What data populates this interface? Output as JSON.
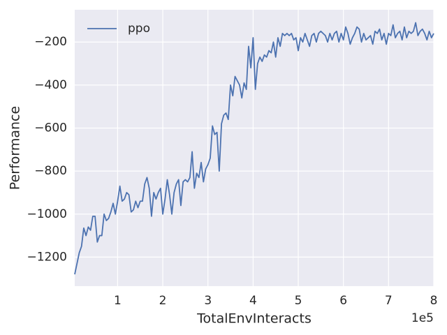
{
  "chart_data": {
    "type": "line",
    "xlabel": "TotalEnvInteracts",
    "ylabel": "Performance",
    "x_offset_label": "1e5",
    "legend": "upper left",
    "grid": true,
    "xlim": [
      5000,
      800000
    ],
    "ylim": [
      -1335,
      -50
    ],
    "xticks": [
      {
        "value": 100000,
        "label": "1"
      },
      {
        "value": 200000,
        "label": "2"
      },
      {
        "value": 300000,
        "label": "3"
      },
      {
        "value": 400000,
        "label": "4"
      },
      {
        "value": 500000,
        "label": "5"
      },
      {
        "value": 600000,
        "label": "6"
      },
      {
        "value": 700000,
        "label": "7"
      },
      {
        "value": 800000,
        "label": "8"
      }
    ],
    "yticks": [
      {
        "value": -1200,
        "label": "−1200"
      },
      {
        "value": -1000,
        "label": "−1000"
      },
      {
        "value": -800,
        "label": "−800"
      },
      {
        "value": -600,
        "label": "−600"
      },
      {
        "value": -400,
        "label": "−400"
      },
      {
        "value": -200,
        "label": "−200"
      }
    ],
    "x": [
      5000,
      10000,
      15000,
      20000,
      25000,
      30000,
      35000,
      40000,
      45000,
      50000,
      55000,
      60000,
      65000,
      70000,
      75000,
      80000,
      85000,
      90000,
      95000,
      100000,
      105000,
      110000,
      115000,
      120000,
      125000,
      130000,
      135000,
      140000,
      145000,
      150000,
      155000,
      160000,
      165000,
      170000,
      175000,
      180000,
      185000,
      190000,
      195000,
      200000,
      205000,
      210000,
      215000,
      220000,
      225000,
      230000,
      235000,
      240000,
      245000,
      250000,
      255000,
      260000,
      265000,
      270000,
      275000,
      280000,
      285000,
      290000,
      295000,
      300000,
      305000,
      310000,
      315000,
      320000,
      325000,
      330000,
      335000,
      340000,
      345000,
      350000,
      355000,
      360000,
      365000,
      370000,
      375000,
      380000,
      385000,
      390000,
      395000,
      400000,
      405000,
      410000,
      415000,
      420000,
      425000,
      430000,
      435000,
      440000,
      445000,
      450000,
      455000,
      460000,
      465000,
      470000,
      475000,
      480000,
      485000,
      490000,
      495000,
      500000,
      505000,
      510000,
      515000,
      520000,
      525000,
      530000,
      535000,
      540000,
      545000,
      550000,
      555000,
      560000,
      565000,
      570000,
      575000,
      580000,
      585000,
      590000,
      595000,
      600000,
      605000,
      610000,
      615000,
      620000,
      625000,
      630000,
      635000,
      640000,
      645000,
      650000,
      655000,
      660000,
      665000,
      670000,
      675000,
      680000,
      685000,
      690000,
      695000,
      700000,
      705000,
      710000,
      715000,
      720000,
      725000,
      730000,
      735000,
      740000,
      745000,
      750000,
      755000,
      760000,
      765000,
      770000,
      775000,
      780000,
      785000,
      790000,
      795000,
      800000
    ],
    "series": [
      {
        "name": "ppo",
        "color": "#4c72b0",
        "values": [
          -1280,
          -1230,
          -1180,
          -1150,
          -1065,
          -1100,
          -1060,
          -1075,
          -1010,
          -1010,
          -1130,
          -1100,
          -1100,
          -1000,
          -1030,
          -1020,
          -990,
          -950,
          -1000,
          -940,
          -870,
          -940,
          -930,
          -900,
          -910,
          -990,
          -980,
          -940,
          -970,
          -940,
          -940,
          -860,
          -830,
          -880,
          -1010,
          -900,
          -930,
          -900,
          -880,
          -1000,
          -930,
          -840,
          -910,
          -1000,
          -900,
          -860,
          -840,
          -960,
          -850,
          -840,
          -850,
          -830,
          -710,
          -880,
          -810,
          -830,
          -760,
          -850,
          -790,
          -770,
          -740,
          -590,
          -630,
          -620,
          -800,
          -580,
          -540,
          -530,
          -560,
          -400,
          -450,
          -360,
          -380,
          -400,
          -460,
          -390,
          -420,
          -220,
          -320,
          -180,
          -420,
          -300,
          -270,
          -290,
          -260,
          -270,
          -240,
          -250,
          -200,
          -270,
          -180,
          -220,
          -160,
          -170,
          -160,
          -170,
          -160,
          -190,
          -180,
          -240,
          -180,
          -200,
          -160,
          -190,
          -220,
          -170,
          -160,
          -200,
          -160,
          -150,
          -160,
          -170,
          -200,
          -160,
          -190,
          -160,
          -150,
          -200,
          -160,
          -190,
          -130,
          -160,
          -210,
          -180,
          -160,
          -130,
          -140,
          -200,
          -160,
          -190,
          -180,
          -170,
          -210,
          -150,
          -160,
          -140,
          -190,
          -160,
          -210,
          -160,
          -170,
          -120,
          -180,
          -160,
          -150,
          -190,
          -130,
          -180,
          -150,
          -160,
          -150,
          -110,
          -170,
          -150,
          -140,
          -160,
          -190,
          -150,
          -180,
          -160
        ]
      }
    ]
  }
}
